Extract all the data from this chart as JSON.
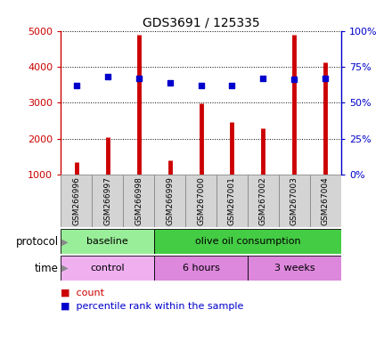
{
  "title": "GDS3691 / 125335",
  "samples": [
    "GSM266996",
    "GSM266997",
    "GSM266998",
    "GSM266999",
    "GSM267000",
    "GSM267001",
    "GSM267002",
    "GSM267003",
    "GSM267004"
  ],
  "counts": [
    1350,
    2050,
    4900,
    1400,
    2980,
    2460,
    2280,
    4900,
    4130
  ],
  "percentile_ranks": [
    62,
    68,
    67,
    64,
    62,
    62,
    67,
    66,
    67
  ],
  "count_color": "#cc0000",
  "percentile_color": "#0000cc",
  "ylim_left": [
    1000,
    5000
  ],
  "ylim_right": [
    0,
    100
  ],
  "yticks_left": [
    1000,
    2000,
    3000,
    4000,
    5000
  ],
  "yticks_right": [
    0,
    25,
    50,
    75,
    100
  ],
  "protocol_groups": [
    {
      "label": "baseline",
      "start": 0,
      "end": 3,
      "color": "#99ee99"
    },
    {
      "label": "olive oil consumption",
      "start": 3,
      "end": 9,
      "color": "#44cc44"
    }
  ],
  "time_groups": [
    {
      "label": "control",
      "start": 0,
      "end": 3,
      "color": "#f0b0f0"
    },
    {
      "label": "6 hours",
      "start": 3,
      "end": 6,
      "color": "#dd88dd"
    },
    {
      "label": "3 weeks",
      "start": 6,
      "end": 9,
      "color": "#dd88dd"
    }
  ],
  "legend_count_label": "count",
  "legend_pct_label": "percentile rank within the sample",
  "protocol_label": "protocol",
  "time_label": "time"
}
